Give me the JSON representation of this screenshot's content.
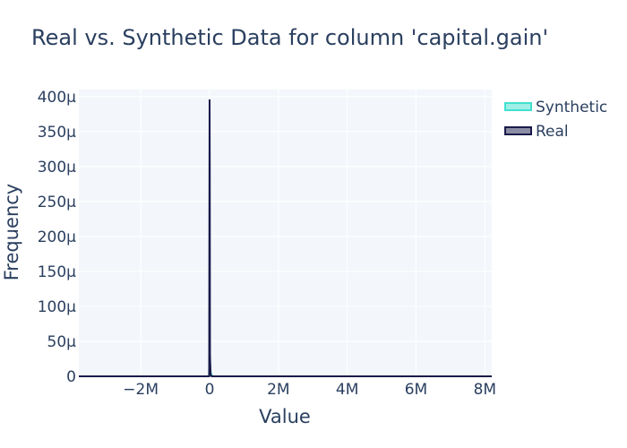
{
  "chart_data": {
    "type": "area",
    "title": "Real vs. Synthetic Data for column 'capital.gain'",
    "xlabel": "Value",
    "ylabel": "Frequency",
    "xlim": [
      -3800000,
      8200000
    ],
    "ylim": [
      0,
      0.00041
    ],
    "x_ticks": [
      -2000000,
      0,
      2000000,
      4000000,
      6000000,
      8000000
    ],
    "x_tick_labels": [
      "−2M",
      "0",
      "2M",
      "4M",
      "6M",
      "8M"
    ],
    "y_ticks": [
      0,
      5e-05,
      0.0001,
      0.00015,
      0.0002,
      0.00025,
      0.0003,
      0.00035,
      0.0004
    ],
    "y_tick_labels": [
      "0",
      "50μ",
      "100μ",
      "150μ",
      "200μ",
      "250μ",
      "300μ",
      "350μ",
      "400μ"
    ],
    "grid": true,
    "legend_position": "top-right",
    "series": [
      {
        "name": "Synthetic",
        "color": "#40e0d0",
        "points": [
          [
            -3800000,
            0
          ],
          [
            -20000,
            0
          ],
          [
            -15000,
            5e-06
          ],
          [
            -8000,
            2.5e-05
          ],
          [
            0,
            3.1e-05
          ],
          [
            8000,
            2.5e-05
          ],
          [
            20000,
            1e-05
          ],
          [
            40000,
            4e-06
          ],
          [
            70000,
            1e-06
          ],
          [
            120000,
            0
          ],
          [
            8200000,
            0
          ]
        ]
      },
      {
        "name": "Real",
        "color": "#1a1a4a",
        "points": [
          [
            -3800000,
            0
          ],
          [
            -12000,
            0
          ],
          [
            -5000,
            0.00025
          ],
          [
            0,
            0.000396
          ],
          [
            5000,
            0.0003
          ],
          [
            12000,
            3e-05
          ],
          [
            30000,
            3e-06
          ],
          [
            60000,
            0
          ],
          [
            8200000,
            0
          ]
        ]
      }
    ]
  }
}
